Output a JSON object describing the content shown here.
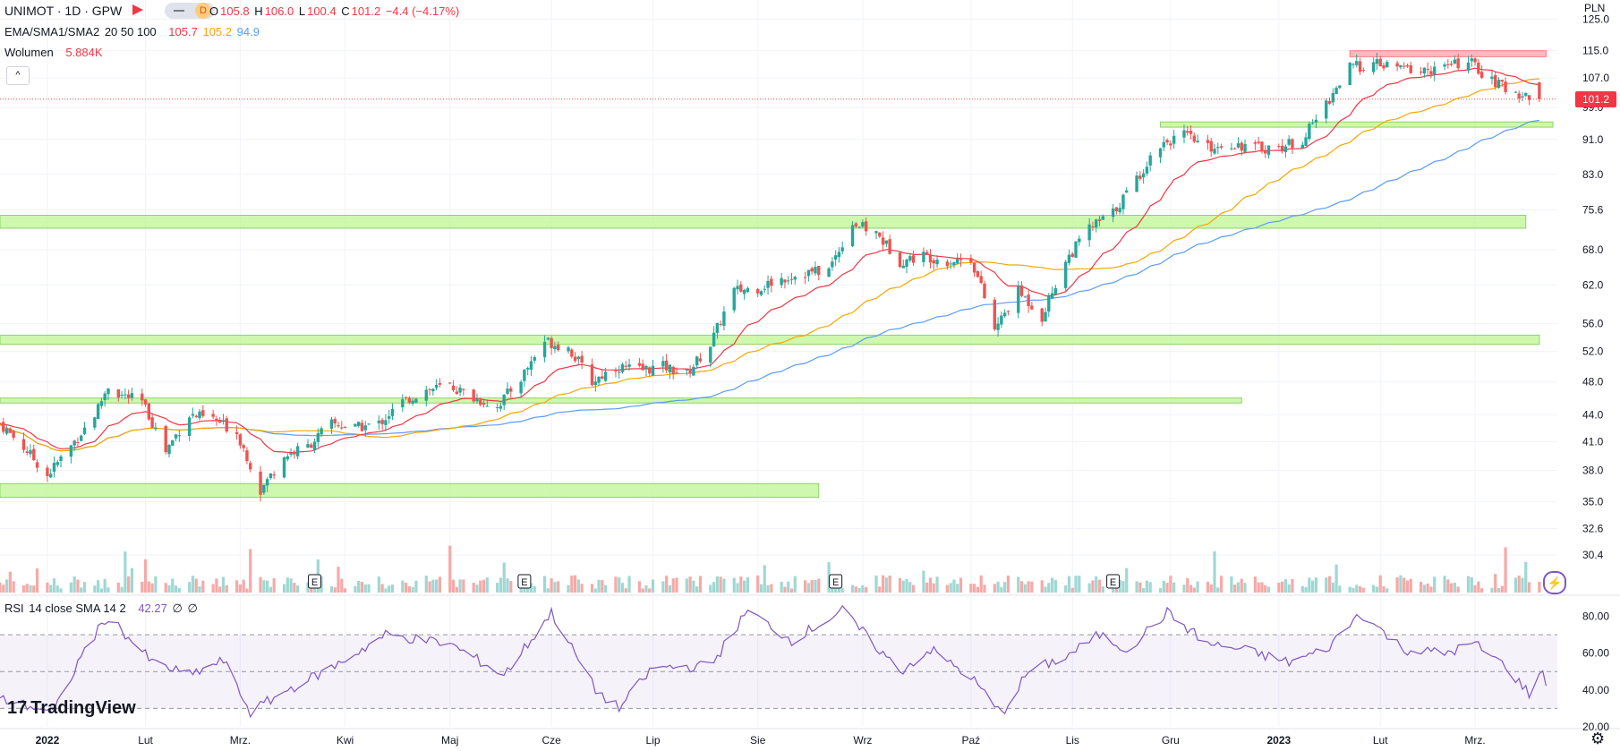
{
  "header": {
    "symbol_line": "UNIMOT · 1D · GPW",
    "toggle_letter": "D",
    "ohlc": {
      "o_label": "O",
      "o_value": "105.8",
      "h_label": "H",
      "h_value": "106.0",
      "l_label": "L",
      "l_value": "100.4",
      "c_label": "C",
      "c_value": "101.2",
      "change": "−4.4 (−4.17%)"
    }
  },
  "indicators": {
    "ma_label": "EMA/SMA1/SMA2",
    "ma_params": "20 50 100",
    "ema_value": "105.7",
    "sma1_value": "105.2",
    "sma2_value": "94.9",
    "volume_label": "Wolumen",
    "volume_value": "5.884K",
    "collapse_icon": "^",
    "rsi_label": "RSI",
    "rsi_params": "14 close SMA 14 2",
    "rsi_value": "42.27",
    "rsi_extra1": "∅",
    "rsi_extra2": "∅"
  },
  "price_axis": {
    "currency": "PLN",
    "ticks": [
      "125.0",
      "115.0",
      "107.0",
      "99.0",
      "91.0",
      "83.0",
      "75.6",
      "68.0",
      "62.0",
      "56.0",
      "52.0",
      "48.0",
      "44.0",
      "41.0",
      "38.0",
      "35.0",
      "32.6",
      "30.4"
    ],
    "last_price": "101.2"
  },
  "rsi_axis": {
    "ticks": [
      "80.00",
      "60.00",
      "40.00",
      "20.00"
    ]
  },
  "time_axis": {
    "labels": [
      "2022",
      "Lut",
      "Mrz.",
      "Kwi",
      "Maj",
      "Cze",
      "Lip",
      "Sie",
      "Wrz",
      "Paź",
      "Lis",
      "Gru",
      "2023",
      "Lut",
      "Mrz."
    ]
  },
  "earnings_marker": "E",
  "branding": {
    "logo_text": "TradingView"
  },
  "colors": {
    "up": "#26a69a",
    "down": "#ef5350",
    "ema": "#f23645",
    "sma1": "#f7a600",
    "sma2": "#5b9cf6",
    "rsi": "#7e57c2",
    "zone_green": "#b9f58a",
    "zone_red": "#f7a1a8"
  },
  "chart_data": {
    "type": "candlestick",
    "title": "UNIMOT · 1D · GPW",
    "y_scale": "log",
    "ylim": [
      29,
      126
    ],
    "x_range": [
      "2021-12-20",
      "2023-03-24"
    ],
    "series_close_path": [
      [
        "2021-12-20",
        43.0
      ],
      [
        "2021-12-28",
        40.0
      ],
      [
        "2022-01-03",
        37.5
      ],
      [
        "2022-01-10",
        40.5
      ],
      [
        "2022-01-17",
        44.0
      ],
      [
        "2022-01-21",
        47.5
      ],
      [
        "2022-01-24",
        46.5
      ],
      [
        "2022-01-31",
        45.5
      ],
      [
        "2022-02-07",
        40.0
      ],
      [
        "2022-02-14",
        44.0
      ],
      [
        "2022-02-21",
        43.5
      ],
      [
        "2022-02-28",
        42.0
      ],
      [
        "2022-03-07",
        36.0
      ],
      [
        "2022-03-14",
        39.5
      ],
      [
        "2022-03-21",
        40.5
      ],
      [
        "2022-03-28",
        43.0
      ],
      [
        "2022-04-04",
        42.5
      ],
      [
        "2022-04-11",
        43.0
      ],
      [
        "2022-04-18",
        45.5
      ],
      [
        "2022-04-25",
        47.0
      ],
      [
        "2022-05-02",
        47.5
      ],
      [
        "2022-05-09",
        46.0
      ],
      [
        "2022-05-16",
        45.0
      ],
      [
        "2022-05-23",
        48.5
      ],
      [
        "2022-05-30",
        53.5
      ],
      [
        "2022-06-06",
        52.5
      ],
      [
        "2022-06-13",
        48.0
      ],
      [
        "2022-06-20",
        50.0
      ],
      [
        "2022-06-27",
        49.5
      ],
      [
        "2022-07-04",
        50.0
      ],
      [
        "2022-07-11",
        49.0
      ],
      [
        "2022-07-18",
        53.0
      ],
      [
        "2022-07-25",
        61.0
      ],
      [
        "2022-08-01",
        61.5
      ],
      [
        "2022-08-08",
        63.0
      ],
      [
        "2022-08-15",
        64.0
      ],
      [
        "2022-08-22",
        64.5
      ],
      [
        "2022-08-29",
        73.0
      ],
      [
        "2022-09-05",
        71.0
      ],
      [
        "2022-09-12",
        66.0
      ],
      [
        "2022-09-19",
        67.0
      ],
      [
        "2022-09-26",
        66.0
      ],
      [
        "2022-10-03",
        66.5
      ],
      [
        "2022-10-10",
        55.0
      ],
      [
        "2022-10-17",
        61.0
      ],
      [
        "2022-10-24",
        57.0
      ],
      [
        "2022-10-31",
        66.0
      ],
      [
        "2022-11-07",
        72.0
      ],
      [
        "2022-11-14",
        75.0
      ],
      [
        "2022-11-21",
        82.0
      ],
      [
        "2022-11-28",
        90.0
      ],
      [
        "2022-12-05",
        92.0
      ],
      [
        "2022-12-12",
        89.0
      ],
      [
        "2022-12-19",
        90.0
      ],
      [
        "2022-12-26",
        89.0
      ],
      [
        "2023-01-02",
        89.0
      ],
      [
        "2023-01-09",
        91.0
      ],
      [
        "2023-01-16",
        100.0
      ],
      [
        "2023-01-23",
        110.0
      ],
      [
        "2023-01-30",
        111.0
      ],
      [
        "2023-02-06",
        110.0
      ],
      [
        "2023-02-13",
        109.0
      ],
      [
        "2023-02-20",
        110.0
      ],
      [
        "2023-02-27",
        112.0
      ],
      [
        "2023-03-06",
        106.0
      ],
      [
        "2023-03-13",
        103.0
      ],
      [
        "2023-03-20",
        101.2
      ]
    ],
    "last_bar": {
      "open": 105.8,
      "high": 106.0,
      "low": 100.4,
      "close": 101.2,
      "change": -4.4,
      "change_pct": -4.17
    },
    "moving_averages": {
      "ema20": 105.7,
      "sma50": 105.2,
      "sma100": 94.9
    },
    "volume_last": "5.884K",
    "zones": [
      {
        "color": "green",
        "low": 72.0,
        "high": 74.5,
        "from": "2021-12-20",
        "to": "2023-03-16"
      },
      {
        "color": "green",
        "low": 53.0,
        "high": 54.3,
        "from": "2021-12-20",
        "to": "2023-03-20"
      },
      {
        "color": "green",
        "low": 45.4,
        "high": 46.0,
        "from": "2021-12-20",
        "to": "2022-12-22"
      },
      {
        "color": "green",
        "low": 35.4,
        "high": 36.7,
        "from": "2021-12-20",
        "to": "2022-08-19"
      },
      {
        "color": "green",
        "low": 94.0,
        "high": 95.3,
        "from": "2022-11-28",
        "to": "2023-03-24"
      },
      {
        "color": "red",
        "low": 113.2,
        "high": 115.0,
        "from": "2023-01-23",
        "to": "2023-03-22"
      }
    ],
    "earnings_dates": [
      "2022-03-23",
      "2022-05-24",
      "2022-08-24",
      "2022-11-14"
    ],
    "rsi": {
      "period": 14,
      "last": 42.27,
      "upper": 70,
      "lower": 30,
      "ylim": [
        20,
        90
      ],
      "path": [
        [
          "2021-12-20",
          35
        ],
        [
          "2022-01-05",
          28
        ],
        [
          "2022-01-14",
          62
        ],
        [
          "2022-01-21",
          80
        ],
        [
          "2022-02-03",
          55
        ],
        [
          "2022-02-14",
          48
        ],
        [
          "2022-02-24",
          56
        ],
        [
          "2022-03-04",
          28
        ],
        [
          "2022-03-15",
          40
        ],
        [
          "2022-03-28",
          52
        ],
        [
          "2022-04-13",
          70
        ],
        [
          "2022-05-02",
          65
        ],
        [
          "2022-05-18",
          48
        ],
        [
          "2022-06-01",
          82
        ],
        [
          "2022-06-14",
          40
        ],
        [
          "2022-06-21",
          30
        ],
        [
          "2022-07-01",
          52
        ],
        [
          "2022-07-18",
          53
        ],
        [
          "2022-07-29",
          83
        ],
        [
          "2022-08-11",
          67
        ],
        [
          "2022-08-26",
          83
        ],
        [
          "2022-09-12",
          50
        ],
        [
          "2022-09-21",
          62
        ],
        [
          "2022-10-03",
          47
        ],
        [
          "2022-10-12",
          27
        ],
        [
          "2022-10-20",
          50
        ],
        [
          "2022-10-31",
          58
        ],
        [
          "2022-11-10",
          70
        ],
        [
          "2022-11-18",
          62
        ],
        [
          "2022-11-30",
          82
        ],
        [
          "2022-12-12",
          65
        ],
        [
          "2022-12-22",
          62
        ],
        [
          "2023-01-05",
          55
        ],
        [
          "2023-01-16",
          62
        ],
        [
          "2023-01-26",
          82
        ],
        [
          "2023-02-08",
          62
        ],
        [
          "2023-02-20",
          60
        ],
        [
          "2023-03-01",
          65
        ],
        [
          "2023-03-10",
          53
        ],
        [
          "2023-03-17",
          38
        ],
        [
          "2023-03-21",
          50
        ],
        [
          "2023-03-22",
          42.27
        ]
      ]
    },
    "xlabels": [
      "2022",
      "Lut",
      "Mrz.",
      "Kwi",
      "Maj",
      "Cze",
      "Lip",
      "Sie",
      "Wrz",
      "Paź",
      "Lis",
      "Gru",
      "2023",
      "Lut",
      "Mrz."
    ]
  }
}
